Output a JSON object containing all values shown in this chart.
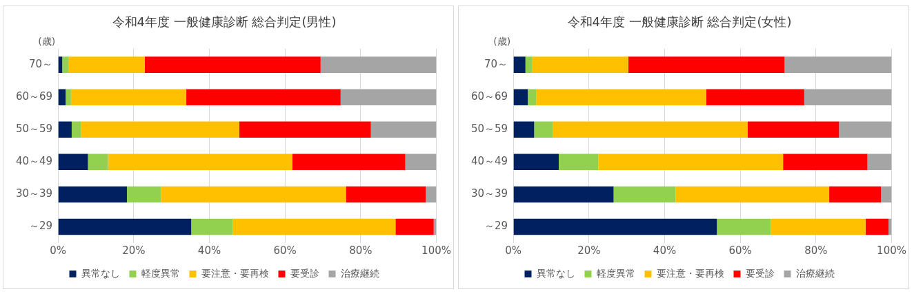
{
  "chart_data": [
    {
      "type": "bar",
      "title": "令和4年度 一般健康診断 総合判定(男性)",
      "ylabel": "(歳)",
      "orientation": "horizontal",
      "stacked": true,
      "categories": [
        "70～",
        "60～69",
        "50～59",
        "40～49",
        "30～39",
        "～29"
      ],
      "series": [
        {
          "name": "異常なし",
          "color": "#002060",
          "values": [
            1.1,
            2.0,
            3.6,
            7.9,
            18.2,
            35.2
          ]
        },
        {
          "name": "軽度異常",
          "color": "#92d050",
          "values": [
            1.6,
            1.4,
            2.4,
            5.3,
            9.0,
            11.0
          ]
        },
        {
          "name": "要注意・要再検",
          "color": "#ffc000",
          "values": [
            20.2,
            30.5,
            41.9,
            48.7,
            48.9,
            43.0
          ]
        },
        {
          "name": "要受診",
          "color": "#ff0000",
          "values": [
            46.5,
            40.8,
            34.8,
            29.9,
            21.1,
            10.1
          ]
        },
        {
          "name": "治療継続",
          "color": "#a5a5a5",
          "values": [
            30.6,
            25.3,
            17.3,
            8.2,
            2.8,
            0.7
          ]
        }
      ],
      "xlim": [
        0,
        100
      ],
      "xticks": [
        {
          "value": 0,
          "label": "0%"
        },
        {
          "value": 20,
          "label": "20%"
        },
        {
          "value": 40,
          "label": "40%"
        },
        {
          "value": 60,
          "label": "60%"
        },
        {
          "value": 80,
          "label": "80%"
        },
        {
          "value": 100,
          "label": "100%"
        }
      ],
      "grid": "x",
      "legend": "bottom"
    },
    {
      "type": "bar",
      "title": "令和4年度 一般健康診断 総合判定(女性)",
      "ylabel": "(歳)",
      "orientation": "horizontal",
      "stacked": true,
      "categories": [
        "70～",
        "60～69",
        "50～59",
        "40～49",
        "30～39",
        "～29"
      ],
      "series": [
        {
          "name": "異常なし",
          "color": "#002060",
          "values": [
            3.2,
            3.8,
            5.5,
            12.0,
            26.5,
            53.8
          ]
        },
        {
          "name": "軽度異常",
          "color": "#92d050",
          "values": [
            1.7,
            2.2,
            5.0,
            10.5,
            16.4,
            14.3
          ]
        },
        {
          "name": "要注意・要再検",
          "color": "#ffc000",
          "values": [
            25.5,
            45.0,
            51.4,
            48.8,
            40.6,
            25.0
          ]
        },
        {
          "name": "要受診",
          "color": "#ff0000",
          "values": [
            41.3,
            25.9,
            24.2,
            22.3,
            13.7,
            6.1
          ]
        },
        {
          "name": "治療継続",
          "color": "#a5a5a5",
          "values": [
            28.3,
            23.1,
            13.9,
            6.4,
            2.8,
            0.8
          ]
        }
      ],
      "xlim": [
        0,
        100
      ],
      "xticks": [
        {
          "value": 0,
          "label": "0%"
        },
        {
          "value": 20,
          "label": "20%"
        },
        {
          "value": 40,
          "label": "40%"
        },
        {
          "value": 60,
          "label": "60%"
        },
        {
          "value": 80,
          "label": "80%"
        },
        {
          "value": 100,
          "label": "100%"
        }
      ],
      "grid": "x",
      "legend": "bottom"
    }
  ]
}
